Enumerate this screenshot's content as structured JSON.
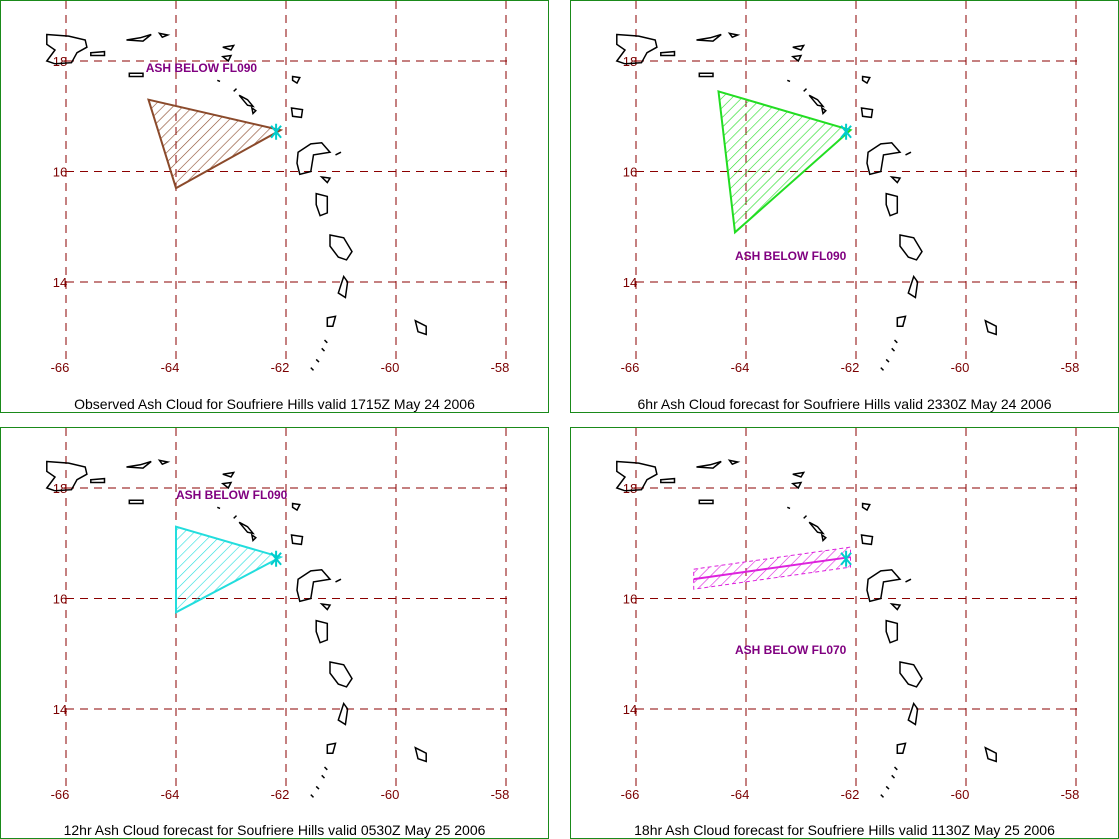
{
  "panels": [
    {
      "caption": "Observed Ash Cloud for Soufriere  Hills valid 1715Z May 24 2006",
      "cloud_color": "#8b4a2b",
      "cloud_shape": "triangle",
      "cloud_points": [
        [
          -64.5,
          17.3
        ],
        [
          -62.1,
          16.75
        ],
        [
          -64.0,
          15.7
        ]
      ],
      "label": {
        "text": "ASH BELOW FL090",
        "lon": -64.55,
        "lat": 17.8
      }
    },
    {
      "caption": "6hr Ash Cloud forecast for Soufriere  Hills valid 2330Z May 24 2006",
      "cloud_color": "#22dd22",
      "cloud_shape": "triangle",
      "cloud_points": [
        [
          -64.5,
          17.45
        ],
        [
          -62.1,
          16.75
        ],
        [
          -64.2,
          14.9
        ]
      ],
      "label": {
        "text": "ASH BELOW FL090",
        "lon": -64.2,
        "lat": 14.4
      }
    },
    {
      "caption": "12hr Ash Cloud forecast for Soufriere  Hills valid 0530Z May 25 2006",
      "cloud_color": "#22dddd",
      "cloud_shape": "triangle",
      "cloud_points": [
        [
          -64.0,
          17.3
        ],
        [
          -62.1,
          16.75
        ],
        [
          -64.0,
          15.75
        ]
      ],
      "label": {
        "text": "ASH BELOW FL090",
        "lon": -64.0,
        "lat": 17.8
      }
    },
    {
      "caption": "18hr Ash Cloud forecast for Soufriere  Hills valid 1130Z May 25 2006",
      "cloud_color": "#dd22dd",
      "cloud_shape": "band",
      "cloud_points": [
        [
          -64.95,
          16.35
        ],
        [
          -62.1,
          16.75
        ]
      ],
      "label": {
        "text": "ASH BELOW FL070",
        "lon": -64.2,
        "lat": 15.0
      }
    }
  ],
  "map": {
    "lat_ticks": [
      18,
      16,
      14
    ],
    "lon_ticks": [
      -66,
      -64,
      -62,
      -60,
      -58
    ],
    "lat_labels": [
      "18",
      "16",
      "14"
    ],
    "lon_labels": [
      "-66",
      "-64",
      "-62",
      "-60",
      "-58"
    ],
    "grid_color": "#8b0000",
    "coast_color": "#000000",
    "label_color": "#800080",
    "volcano_color": "#00cccc"
  }
}
